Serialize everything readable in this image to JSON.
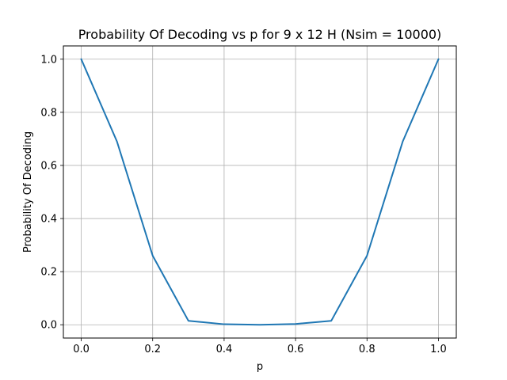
{
  "chart_data": {
    "type": "line",
    "title": "Probability Of Decoding vs p for 9 x 12 H (Nsim = 10000)",
    "xlabel": "p",
    "ylabel": "Probability Of Decoding",
    "xlim": [
      -0.05,
      1.05
    ],
    "ylim": [
      -0.05,
      1.05
    ],
    "xticks": [
      "0.0",
      "0.2",
      "0.4",
      "0.6",
      "0.8",
      "1.0"
    ],
    "yticks": [
      "0.0",
      "0.2",
      "0.4",
      "0.6",
      "0.8",
      "1.0"
    ],
    "grid": true,
    "series": [
      {
        "color": "#1f77b4",
        "x": [
          0.0,
          0.1,
          0.2,
          0.3,
          0.4,
          0.5,
          0.6,
          0.7,
          0.8,
          0.9,
          1.0
        ],
        "y": [
          1.0,
          0.69,
          0.26,
          0.015,
          0.002,
          0.0,
          0.003,
          0.015,
          0.26,
          0.69,
          1.0
        ]
      }
    ]
  }
}
